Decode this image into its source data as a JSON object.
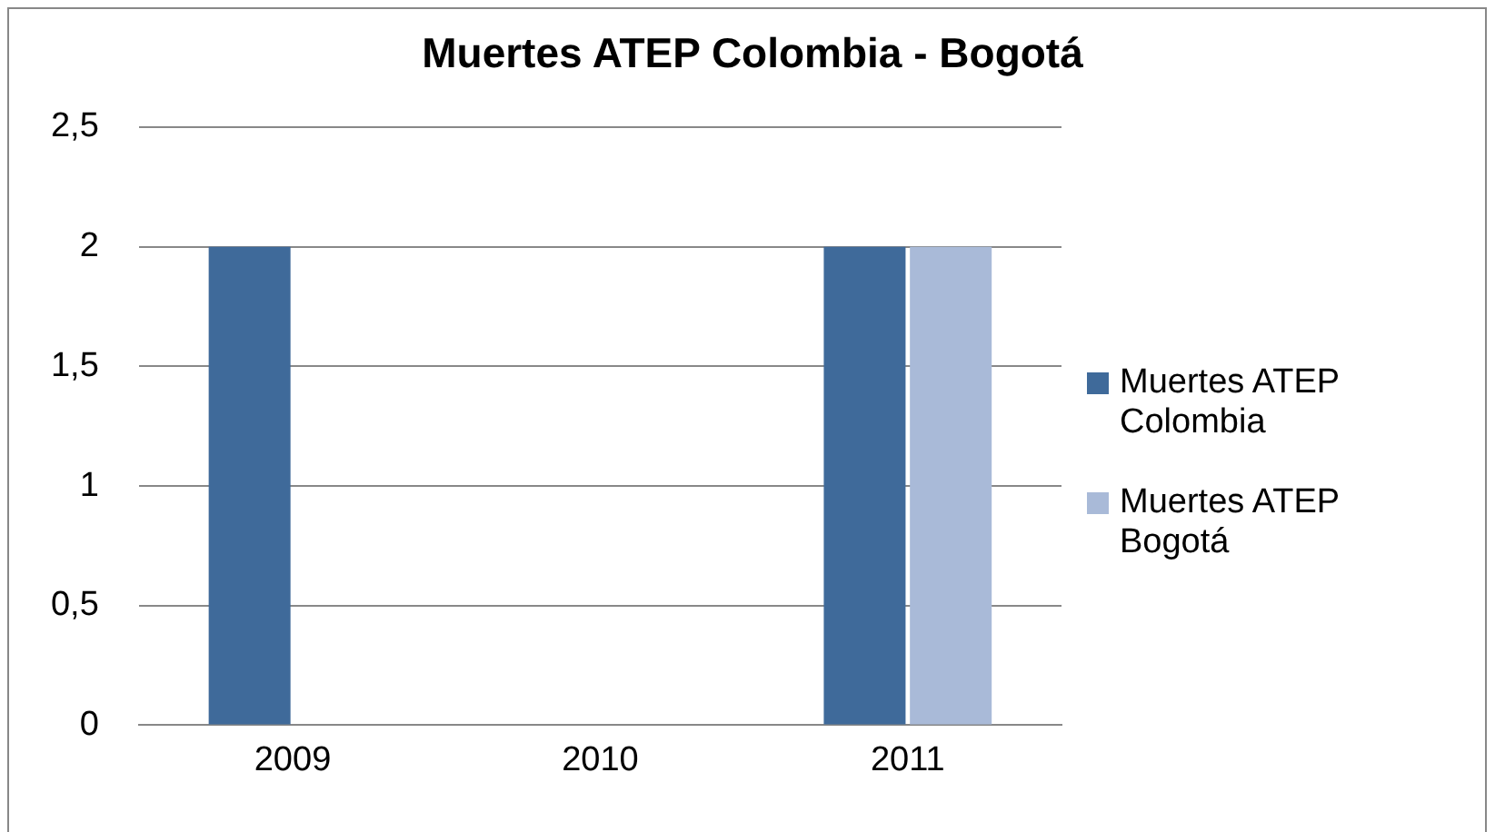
{
  "chart_data": {
    "type": "bar",
    "title": "Muertes ATEP Colombia - Bogotá",
    "categories": [
      "2009",
      "2010",
      "2011"
    ],
    "series": [
      {
        "name": "Muertes ATEP Colombia",
        "color": "#3f6a9a",
        "values": [
          2,
          0,
          2
        ]
      },
      {
        "name": "Muertes ATEP Bogotá",
        "color": "#a9bad8",
        "values": [
          0,
          0,
          2
        ]
      }
    ],
    "ylim": [
      0,
      2.5
    ],
    "yticks": [
      0,
      {
        "value": 0.5,
        "label": "0,5"
      },
      1,
      {
        "value": 1.5,
        "label": "1,5"
      },
      2,
      {
        "value": 2.5,
        "label": "2,5"
      }
    ],
    "grid": "y",
    "legend": "right"
  }
}
